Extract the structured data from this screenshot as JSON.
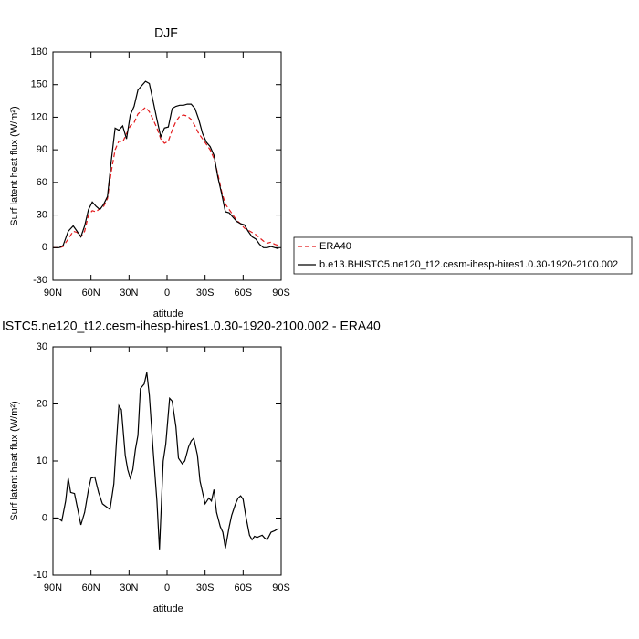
{
  "chart_data": [
    {
      "type": "line",
      "title": "DJF",
      "x_label": "latitude",
      "y_label": "Surf latent heat flux (W/m²)",
      "x": [
        90,
        85,
        82,
        78,
        74,
        71,
        68,
        65,
        62,
        59,
        56,
        53,
        50,
        47,
        44,
        41,
        38,
        35,
        32,
        29,
        26,
        23,
        20,
        17,
        14,
        11,
        8,
        5,
        2,
        -1,
        -4,
        -7,
        -10,
        -13,
        -16,
        -19,
        -22,
        -25,
        -28,
        -31,
        -34,
        -37,
        -40,
        -43,
        -46,
        -49,
        -52,
        -55,
        -58,
        -61,
        -64,
        -67,
        -70,
        -73,
        -76,
        -79,
        -82,
        -85,
        -88
      ],
      "series": [
        {
          "name": "ERA40",
          "color": "#e31a1c",
          "dashed": true,
          "values": [
            0,
            0,
            1,
            8,
            15,
            14,
            10,
            15,
            30,
            34,
            33,
            36,
            38,
            45,
            70,
            90,
            98,
            97,
            105,
            112,
            115,
            123,
            126,
            129,
            125,
            118,
            110,
            100,
            96,
            98,
            108,
            116,
            121,
            122,
            121,
            118,
            112,
            105,
            100,
            95,
            90,
            82,
            68,
            52,
            40,
            35,
            30,
            25,
            22,
            18,
            16,
            14,
            12,
            9,
            6,
            4,
            5,
            3,
            2
          ]
        },
        {
          "name": "b.e13.BHISTC5.ne120_t12.cesm-ihesp-hires1.0.30-1920-2100.002",
          "color": "#000000",
          "dashed": false,
          "values": [
            0,
            0,
            2,
            15,
            20,
            15,
            10,
            20,
            35,
            42,
            38,
            35,
            40,
            47,
            80,
            110,
            108,
            112,
            100,
            122,
            130,
            145,
            149,
            153,
            151,
            135,
            118,
            102,
            110,
            111,
            128,
            130,
            131,
            131,
            132,
            132,
            128,
            118,
            105,
            97,
            93,
            85,
            65,
            50,
            33,
            32,
            28,
            24,
            22,
            21,
            15,
            10,
            8,
            3,
            0,
            0,
            1,
            0,
            -1
          ]
        }
      ],
      "xlim": [
        90,
        -90
      ],
      "xticks": [
        {
          "value": 90,
          "label": "90N"
        },
        {
          "value": 60,
          "label": "60N"
        },
        {
          "value": 30,
          "label": "30N"
        },
        0,
        {
          "value": -30,
          "label": "30S"
        },
        {
          "value": -60,
          "label": "60S"
        },
        {
          "value": -90,
          "label": "90S"
        }
      ],
      "ylim": [
        -30,
        180
      ],
      "yticks": [
        -30,
        0,
        30,
        60,
        90,
        120,
        150,
        180
      ],
      "legend": "right"
    },
    {
      "type": "line",
      "title": "ISTC5.ne120_t12.cesm-ihesp-hires1.0.30-1920-2100.002 - ERA40",
      "x_label": "latitude",
      "y_label": "Surf latent heat flux (W/m²)",
      "x": [
        90,
        86,
        83,
        80,
        78,
        76,
        73,
        70,
        68,
        65,
        62,
        60,
        57,
        54,
        51,
        48,
        45,
        42,
        40,
        38,
        36,
        33,
        31,
        29,
        27,
        25,
        23,
        21,
        18,
        16,
        14,
        11,
        8,
        6,
        3,
        1,
        -2,
        -4,
        -7,
        -9,
        -12,
        -14,
        -17,
        -19,
        -21,
        -24,
        -26,
        -28,
        -30,
        -33,
        -35,
        -37,
        -39,
        -42,
        -44,
        -46,
        -49,
        -51,
        -54,
        -56,
        -58,
        -60,
        -62,
        -65,
        -67,
        -69,
        -71,
        -73,
        -75,
        -77,
        -79,
        -82,
        -85,
        -88
      ],
      "series": [
        {
          "name": null,
          "color": "#000000",
          "dashed": false,
          "values": [
            0,
            0,
            -0.5,
            3,
            7,
            4.5,
            4.3,
            1,
            -1.2,
            1,
            5,
            7,
            7.2,
            4.5,
            2.5,
            2,
            1.5,
            6,
            13,
            19.7,
            19,
            11,
            8.5,
            7,
            8.5,
            12,
            14.5,
            22.7,
            23.5,
            25.5,
            21.5,
            12,
            3,
            -5.5,
            10,
            13,
            21,
            20.5,
            16,
            10.5,
            9.5,
            10,
            12.5,
            13.5,
            14,
            11,
            6.5,
            4.5,
            2.5,
            3.5,
            3,
            5,
            1,
            -1.5,
            -2.5,
            -5.3,
            -1.5,
            0.5,
            2.5,
            3.5,
            3.9,
            3.3,
            0.5,
            -3,
            -3.8,
            -3.2,
            -3.4,
            -3.2,
            -3,
            -3.5,
            -3.8,
            -2.5,
            -2.2,
            -1.8
          ]
        }
      ],
      "xlim": [
        90,
        -90
      ],
      "xticks": [
        {
          "value": 90,
          "label": "90N"
        },
        {
          "value": 60,
          "label": "60N"
        },
        {
          "value": 30,
          "label": "30N"
        },
        0,
        {
          "value": -30,
          "label": "30S"
        },
        {
          "value": -60,
          "label": "60S"
        },
        {
          "value": -90,
          "label": "90S"
        }
      ],
      "ylim": [
        -10,
        30
      ],
      "yticks": [
        -10,
        0,
        10,
        20,
        30
      ]
    }
  ]
}
